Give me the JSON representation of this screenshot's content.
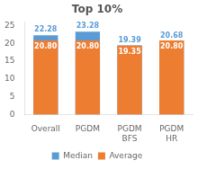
{
  "chart_data": {
    "type": "bar",
    "title": "Top 10%",
    "categories": [
      "Overall",
      "PGDM",
      "PGDM\nBFS",
      "PGDM\nHR"
    ],
    "series": [
      {
        "name": "Median",
        "color": "#5b9bd5",
        "values": [
          22.28,
          23.28,
          19.39,
          20.68
        ]
      },
      {
        "name": "Average",
        "color": "#ed7d31",
        "values": [
          20.8,
          20.8,
          19.35,
          20.8
        ],
        "value_labels": [
          "20.80",
          "20.80",
          "19.35",
          "20.80"
        ]
      }
    ],
    "ylim": [
      0,
      26
    ],
    "yticks": [
      0,
      5,
      10,
      15,
      20,
      25
    ],
    "grid": false,
    "legend": "bottom",
    "data_labels": true
  }
}
